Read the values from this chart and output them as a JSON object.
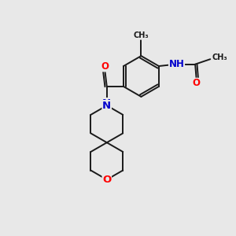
{
  "background_color": "#e8e8e8",
  "bond_color": "#1a1a1a",
  "atom_colors": {
    "O": "#ff0000",
    "N": "#0000cc",
    "NH": "#0000cc",
    "C": "#1a1a1a"
  },
  "figsize": [
    3.0,
    3.0
  ],
  "dpi": 100,
  "lw": 1.4,
  "fontsize": 8.5
}
